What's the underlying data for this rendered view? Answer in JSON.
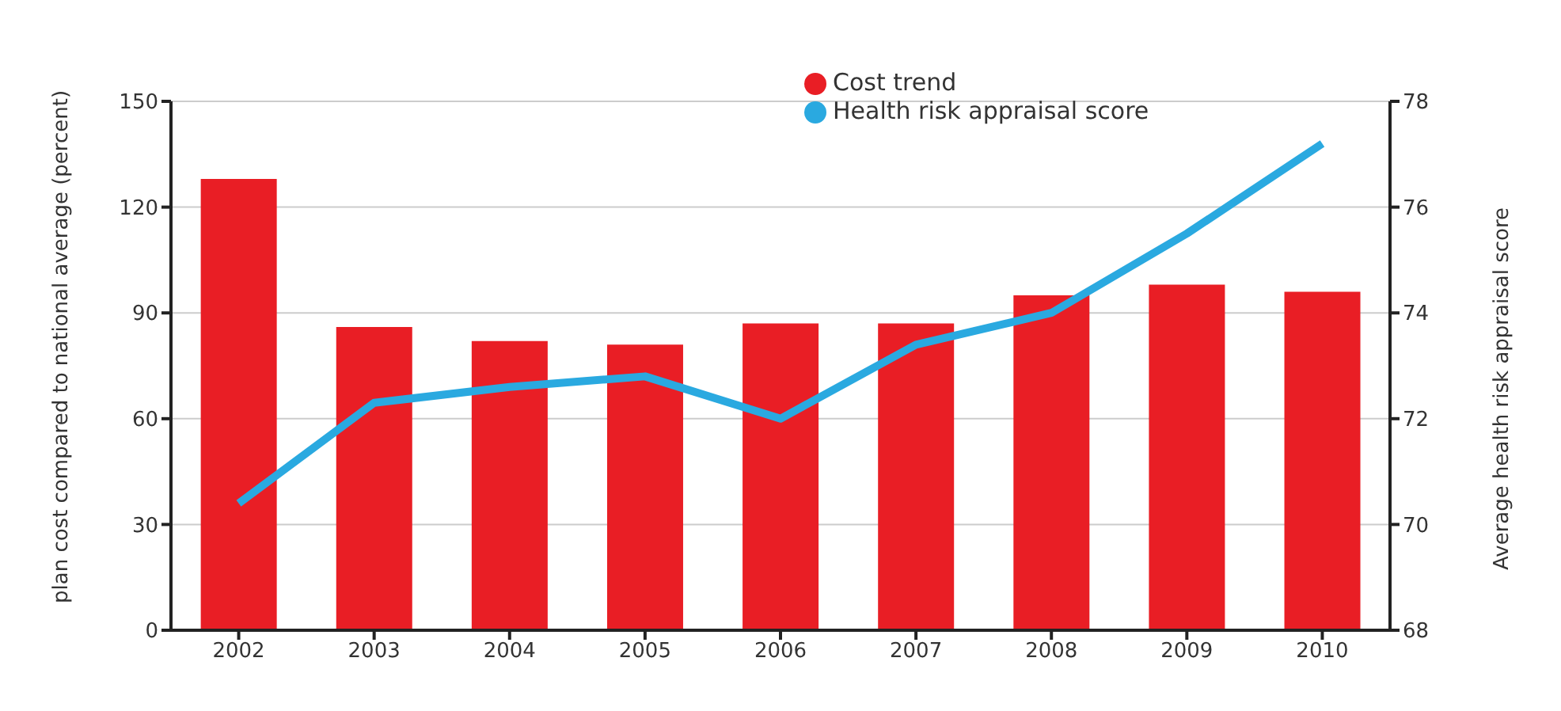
{
  "chart_data": {
    "type": "bar",
    "ylabel": "plan cost compared to national average (percent)",
    "y2label": "Average health risk appraisal score",
    "categories": [
      "2002",
      "2003",
      "2004",
      "2005",
      "2006",
      "2007",
      "2008",
      "2009",
      "2010"
    ],
    "series": [
      {
        "name": "Cost trend",
        "color": "#e91e25",
        "values": [
          128,
          86,
          82,
          81,
          87,
          87,
          95,
          98,
          96
        ]
      },
      {
        "name": "Health risk appraisal score",
        "type": "line",
        "axis": "y2",
        "color": "#2aa9e0",
        "values": [
          70.4,
          72.3,
          72.6,
          72.8,
          72.0,
          73.4,
          74.0,
          75.5,
          77.2
        ]
      }
    ],
    "ylim": [
      0,
      150
    ],
    "yticks": [
      0,
      30,
      60,
      90,
      120,
      150
    ],
    "y2lim": [
      68,
      78
    ],
    "y2ticks": [
      68,
      70,
      72,
      74,
      76,
      78
    ],
    "grid": "y",
    "legend": "top",
    "marker": "none",
    "line_style": "solid"
  }
}
